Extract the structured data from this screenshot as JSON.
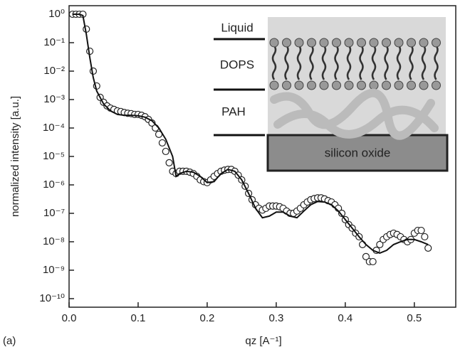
{
  "chart_data": {
    "type": "scatter",
    "annotation": "(a)",
    "x_label": "qz [A⁻¹]",
    "y_label": "normalized intensity [a.u.]",
    "y_log": true,
    "xlim": [
      0,
      0.56
    ],
    "ylim": [
      5e-11,
      2
    ],
    "xticks": [
      {
        "value": 0,
        "label": "0.0"
      },
      0.1,
      0.2,
      0.3,
      0.4,
      0.5
    ],
    "yticks": [
      {
        "value": 1,
        "label": "10⁰"
      },
      {
        "value": 0.1,
        "label": "10⁻¹"
      },
      {
        "value": 0.01,
        "label": "10⁻²"
      },
      {
        "value": 0.001,
        "label": "10⁻³"
      },
      {
        "value": 0.0001,
        "label": "10⁻⁴"
      },
      {
        "value": 1e-05,
        "label": "10⁻⁵"
      },
      {
        "value": 1e-06,
        "label": "10⁻⁶"
      },
      {
        "value": 1e-07,
        "label": "10⁻⁷"
      },
      {
        "value": 1e-08,
        "label": "10⁻⁸"
      },
      {
        "value": 1e-09,
        "label": "10⁻⁹"
      },
      {
        "value": 1e-10,
        "label": "10⁻¹⁰"
      }
    ],
    "inset_labels": [
      "Liquid",
      "DOPS",
      "PAH",
      "silicon oxide"
    ],
    "series": [
      {
        "style": "markers",
        "color": "#222",
        "x": [
          0.005,
          0.01,
          0.015,
          0.02,
          0.025,
          0.03,
          0.035,
          0.04,
          0.045,
          0.05,
          0.055,
          0.06,
          0.065,
          0.07,
          0.075,
          0.08,
          0.085,
          0.09,
          0.095,
          0.1,
          0.105,
          0.11,
          0.115,
          0.12,
          0.125,
          0.13,
          0.135,
          0.14,
          0.145,
          0.15,
          0.155,
          0.16,
          0.165,
          0.17,
          0.175,
          0.18,
          0.185,
          0.19,
          0.195,
          0.2,
          0.205,
          0.21,
          0.215,
          0.22,
          0.225,
          0.23,
          0.235,
          0.24,
          0.245,
          0.25,
          0.255,
          0.26,
          0.265,
          0.27,
          0.275,
          0.28,
          0.285,
          0.29,
          0.295,
          0.3,
          0.305,
          0.31,
          0.315,
          0.32,
          0.325,
          0.33,
          0.335,
          0.34,
          0.345,
          0.35,
          0.355,
          0.36,
          0.365,
          0.37,
          0.375,
          0.38,
          0.385,
          0.39,
          0.395,
          0.4,
          0.405,
          0.41,
          0.415,
          0.42,
          0.425,
          0.43,
          0.435,
          0.44,
          0.445,
          0.45,
          0.455,
          0.46,
          0.465,
          0.47,
          0.475,
          0.48,
          0.485,
          0.49,
          0.495,
          0.5,
          0.505,
          0.51,
          0.515,
          0.52
        ],
        "values": [
          1,
          1,
          1,
          1,
          0.3,
          0.05,
          0.01,
          0.003,
          0.0012,
          0.0008,
          0.0006,
          0.0005,
          0.00045,
          0.0004,
          0.00038,
          0.00035,
          0.00033,
          0.00032,
          0.0003,
          0.0003,
          0.00028,
          0.00025,
          0.0002,
          0.00015,
          0.0001,
          6e-05,
          3e-05,
          1.5e-05,
          6e-06,
          3e-06,
          2.5e-06,
          3e-06,
          3e-06,
          3e-06,
          2.8e-06,
          2.5e-06,
          2e-06,
          1.5e-06,
          1.3e-06,
          1.2e-06,
          1.5e-06,
          2e-06,
          2.5e-06,
          3e-06,
          3.3e-06,
          3.5e-06,
          3.5e-06,
          3e-06,
          2.2e-06,
          1.5e-06,
          9e-07,
          5e-07,
          3e-07,
          2e-07,
          1.5e-07,
          1.3e-07,
          1.5e-07,
          1.8e-07,
          1.8e-07,
          1.8e-07,
          1.7e-07,
          1.5e-07,
          1.2e-07,
          1e-07,
          1e-07,
          1.2e-07,
          1.5e-07,
          2e-07,
          2.5e-07,
          3e-07,
          3.3e-07,
          3.5e-07,
          3.5e-07,
          3.2e-07,
          2.8e-07,
          2.5e-07,
          2e-07,
          1.5e-07,
          1e-07,
          6e-08,
          4e-08,
          3e-08,
          2e-08,
          1.5e-08,
          8e-09,
          3e-09,
          2e-09,
          2e-09,
          5e-09,
          8e-09,
          1.2e-08,
          1.5e-08,
          1.8e-08,
          2e-08,
          1.8e-08,
          1.5e-08,
          1.2e-08,
          1e-08,
          1.2e-08,
          2e-08,
          2.5e-08,
          2.5e-08,
          1.5e-08,
          6e-09
        ]
      },
      {
        "style": "line",
        "color": "#111",
        "x": [
          0.005,
          0.015,
          0.02,
          0.025,
          0.03,
          0.035,
          0.04,
          0.05,
          0.06,
          0.07,
          0.08,
          0.09,
          0.1,
          0.11,
          0.12,
          0.13,
          0.14,
          0.15,
          0.155,
          0.16,
          0.17,
          0.18,
          0.19,
          0.2,
          0.21,
          0.22,
          0.23,
          0.24,
          0.25,
          0.26,
          0.27,
          0.28,
          0.29,
          0.3,
          0.31,
          0.32,
          0.33,
          0.34,
          0.35,
          0.36,
          0.37,
          0.38,
          0.39,
          0.4,
          0.41,
          0.42,
          0.43,
          0.44,
          0.45,
          0.46,
          0.47,
          0.48,
          0.49,
          0.5,
          0.51,
          0.52
        ],
        "values": [
          1,
          1,
          0.9,
          0.2,
          0.03,
          0.006,
          0.002,
          0.0007,
          0.0004,
          0.0003,
          0.00028,
          0.00028,
          0.00027,
          0.00024,
          0.00018,
          0.0001,
          4e-05,
          1e-05,
          2e-06,
          2.5e-06,
          3e-06,
          2.8e-06,
          2e-06,
          1.2e-06,
          1.3e-06,
          2.5e-06,
          3.5e-06,
          3e-06,
          1.5e-06,
          5e-07,
          1.5e-07,
          7e-08,
          8e-08,
          1.1e-07,
          1.1e-07,
          8e-08,
          7e-08,
          1.2e-07,
          2e-07,
          2.6e-07,
          2.5e-07,
          2e-07,
          1.2e-07,
          6e-08,
          3e-08,
          1.5e-08,
          8e-09,
          5e-09,
          4e-09,
          5e-09,
          8e-09,
          1e-08,
          1.2e-08,
          1.2e-08,
          1e-08,
          8e-09
        ]
      }
    ]
  }
}
